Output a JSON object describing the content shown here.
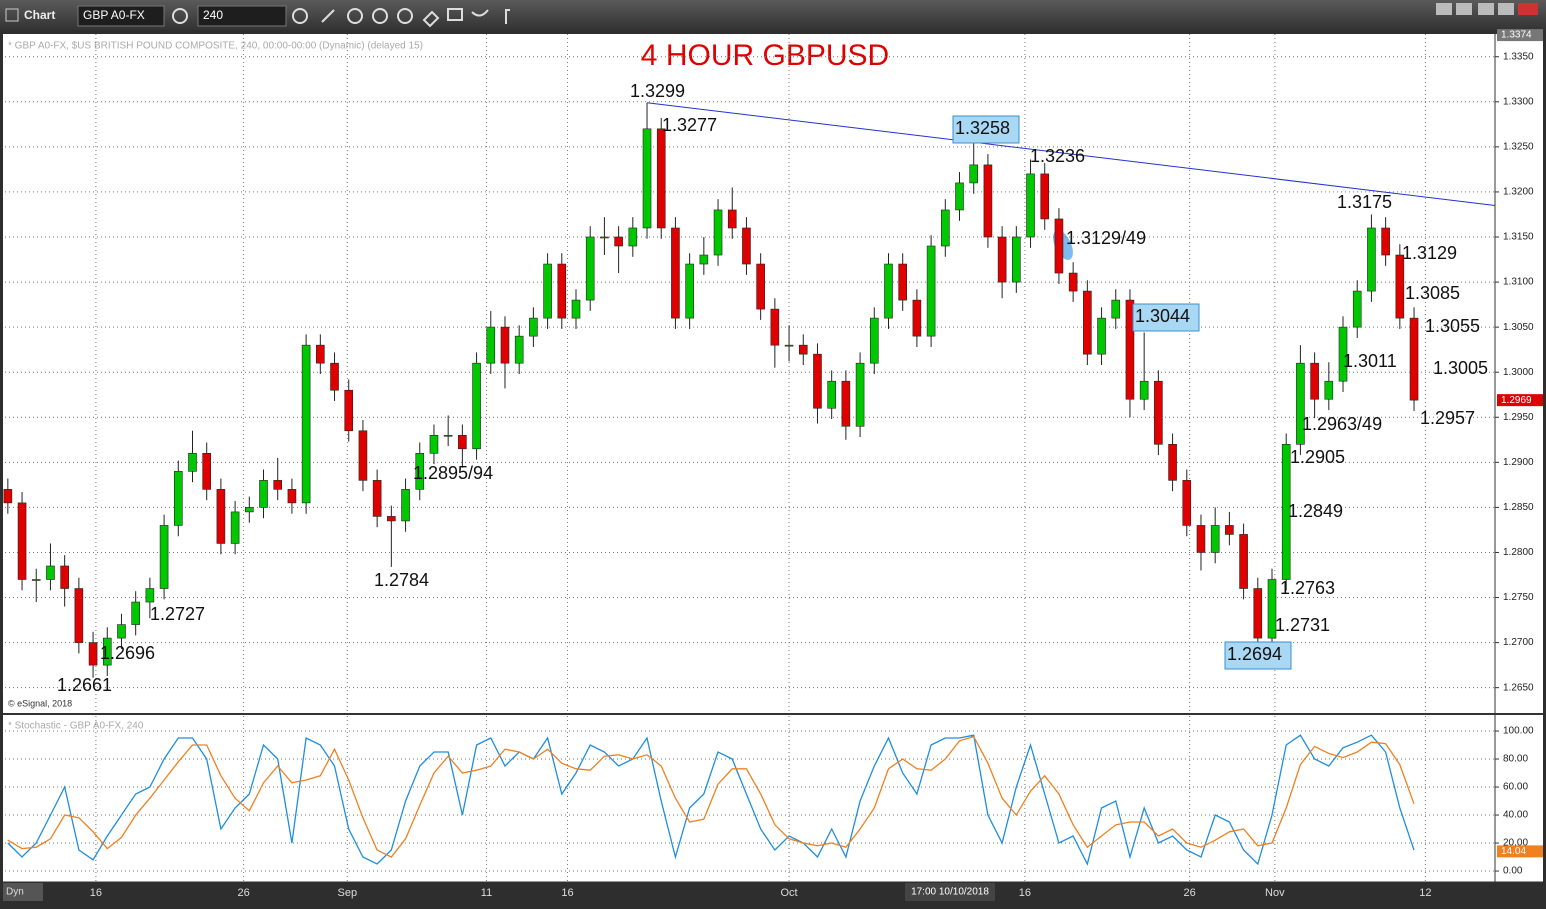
{
  "ui": {
    "window_title": "Chart",
    "symbol": "GBP A0-FX",
    "interval": "240",
    "mode": "Dyn",
    "price_header": "* GBP A0-FX, $US BRITISH POUND COMPOSITE, 240, 00:00-00:00 (Dynamic) (delayed 15)",
    "copyright": "© eSignal, 2018",
    "stoch_header": "* Stochastic - GBP A0-FX, 240",
    "cursor_time": "17:00 10/10/2018"
  },
  "chart_data": [
    {
      "type": "candlestick",
      "title": "4 HOUR GBPUSD",
      "up_color": "#00c800",
      "down_color": "#e00000",
      "open": [
        1.287,
        1.2855,
        1.277,
        1.277,
        1.2785,
        1.276,
        1.27,
        1.2675,
        1.2705,
        1.272,
        1.2745,
        1.276,
        1.283,
        1.289,
        1.291,
        1.287,
        1.281,
        1.2845,
        1.285,
        1.288,
        1.287,
        1.2855,
        1.303,
        1.301,
        1.298,
        1.2935,
        1.288,
        1.284,
        1.2835,
        1.287,
        1.291,
        1.293,
        1.293,
        1.2915,
        1.301,
        1.305,
        1.301,
        1.304,
        1.306,
        1.312,
        1.306,
        1.308,
        1.315,
        1.315,
        1.314,
        1.316,
        1.327,
        1.316,
        1.306,
        1.312,
        1.313,
        1.318,
        1.316,
        1.312,
        1.307,
        1.303,
        1.303,
        1.302,
        1.296,
        1.299,
        1.294,
        1.301,
        1.306,
        1.312,
        1.308,
        1.304,
        1.314,
        1.318,
        1.321,
        1.323,
        1.315,
        1.31,
        1.315,
        1.322,
        1.317,
        1.311,
        1.309,
        1.302,
        1.306,
        1.308,
        1.297,
        1.299,
        1.292,
        1.288,
        1.283,
        1.28,
        1.283,
        1.282,
        1.276,
        1.2705,
        1.277,
        1.292,
        1.301,
        1.297,
        1.299,
        1.305,
        1.309,
        1.316,
        1.313,
        1.306
      ],
      "high": [
        1.2882,
        1.2867,
        1.2782,
        1.281,
        1.2797,
        1.2772,
        1.2712,
        1.2717,
        1.2732,
        1.2757,
        1.2772,
        1.2842,
        1.2902,
        1.2935,
        1.2922,
        1.2882,
        1.2857,
        1.2862,
        1.2892,
        1.2905,
        1.2882,
        1.3042,
        1.3042,
        1.3022,
        1.2992,
        1.2947,
        1.2892,
        1.2852,
        1.2882,
        1.2922,
        1.2942,
        1.2952,
        1.2942,
        1.3022,
        1.3068,
        1.3062,
        1.3052,
        1.3072,
        1.3132,
        1.3132,
        1.3092,
        1.3162,
        1.3172,
        1.3162,
        1.3172,
        1.3299,
        1.3282,
        1.3172,
        1.3132,
        1.315,
        1.3192,
        1.3205,
        1.3172,
        1.3132,
        1.3082,
        1.3052,
        1.3042,
        1.3032,
        1.3002,
        1.3002,
        1.3022,
        1.3072,
        1.3132,
        1.3132,
        1.3092,
        1.3152,
        1.3192,
        1.3222,
        1.3258,
        1.3242,
        1.3162,
        1.3162,
        1.3236,
        1.3232,
        1.3182,
        1.3122,
        1.3102,
        1.3072,
        1.3092,
        1.3092,
        1.3044,
        1.3002,
        1.2932,
        1.2892,
        1.2842,
        1.285,
        1.2845,
        1.2832,
        1.2772,
        1.2782,
        1.2932,
        1.303,
        1.3022,
        1.3011,
        1.3062,
        1.3102,
        1.3175,
        1.3172,
        1.3142,
        1.3072
      ],
      "low": [
        1.2843,
        1.2758,
        1.2745,
        1.2758,
        1.274,
        1.2688,
        1.2661,
        1.2663,
        1.2693,
        1.2708,
        1.2727,
        1.2748,
        1.2818,
        1.2878,
        1.2858,
        1.2798,
        1.2798,
        1.2833,
        1.2838,
        1.2858,
        1.2843,
        1.2843,
        1.2998,
        1.2968,
        1.2923,
        1.2868,
        1.2828,
        1.2784,
        1.2823,
        1.2858,
        1.2898,
        1.2918,
        1.2894,
        1.2903,
        1.2998,
        1.2982,
        1.2998,
        1.3028,
        1.3048,
        1.3048,
        1.3048,
        1.3068,
        1.313,
        1.311,
        1.3128,
        1.3148,
        1.3148,
        1.3048,
        1.3048,
        1.3108,
        1.3118,
        1.3148,
        1.3108,
        1.3058,
        1.3005,
        1.3012,
        1.3008,
        1.2943,
        1.2948,
        1.2925,
        1.2928,
        1.2998,
        1.3048,
        1.3068,
        1.3028,
        1.3028,
        1.3128,
        1.3168,
        1.3198,
        1.3138,
        1.3082,
        1.3088,
        1.3138,
        1.3158,
        1.3098,
        1.3078,
        1.3008,
        1.3008,
        1.3048,
        1.295,
        1.2958,
        1.2908,
        1.2868,
        1.2818,
        1.278,
        1.2788,
        1.2808,
        1.2748,
        1.2694,
        1.2693,
        1.2758,
        1.2908,
        1.2949,
        1.2958,
        1.2978,
        1.3038,
        1.3078,
        1.3118,
        1.3048,
        1.2957
      ],
      "close": [
        1.2855,
        1.277,
        1.277,
        1.2785,
        1.276,
        1.27,
        1.2675,
        1.2705,
        1.272,
        1.2745,
        1.276,
        1.283,
        1.289,
        1.291,
        1.287,
        1.281,
        1.2845,
        1.285,
        1.288,
        1.287,
        1.2855,
        1.303,
        1.301,
        1.298,
        1.2935,
        1.288,
        1.284,
        1.2835,
        1.287,
        1.291,
        1.293,
        1.293,
        1.2915,
        1.301,
        1.305,
        1.301,
        1.304,
        1.306,
        1.312,
        1.306,
        1.308,
        1.315,
        1.315,
        1.314,
        1.316,
        1.327,
        1.316,
        1.306,
        1.312,
        1.313,
        1.318,
        1.316,
        1.312,
        1.307,
        1.303,
        1.303,
        1.302,
        1.296,
        1.299,
        1.294,
        1.301,
        1.306,
        1.312,
        1.308,
        1.304,
        1.314,
        1.318,
        1.321,
        1.323,
        1.315,
        1.31,
        1.315,
        1.322,
        1.317,
        1.311,
        1.309,
        1.302,
        1.306,
        1.308,
        1.297,
        1.299,
        1.292,
        1.288,
        1.283,
        1.28,
        1.283,
        1.282,
        1.276,
        1.2705,
        1.277,
        1.292,
        1.301,
        1.297,
        1.299,
        1.305,
        1.309,
        1.316,
        1.313,
        1.306,
        1.2969
      ],
      "xlim": [
        -0.2,
        104.7
      ],
      "ylim": [
        1.2623,
        1.3373
      ],
      "yticks": [
        {
          "value": 1.265,
          "label": "1.2650"
        },
        {
          "value": 1.27,
          "label": "1.2700"
        },
        {
          "value": 1.275,
          "label": "1.2750"
        },
        {
          "value": 1.28,
          "label": "1.2800"
        },
        {
          "value": 1.285,
          "label": "1.2850"
        },
        {
          "value": 1.29,
          "label": "1.2900"
        },
        {
          "value": 1.295,
          "label": "1.2950"
        },
        {
          "value": 1.3,
          "label": "1.3000"
        },
        {
          "value": 1.305,
          "label": "1.3050"
        },
        {
          "value": 1.31,
          "label": "1.3100"
        },
        {
          "value": 1.315,
          "label": "1.3150"
        },
        {
          "value": 1.32,
          "label": "1.3200"
        },
        {
          "value": 1.325,
          "label": "1.3250"
        },
        {
          "value": 1.33,
          "label": "1.3300"
        },
        {
          "value": 1.335,
          "label": "1.3350"
        }
      ],
      "xticks": [
        {
          "value": 6.2,
          "label": "16"
        },
        {
          "value": 16.6,
          "label": "26"
        },
        {
          "value": 23.9,
          "label": "Sep"
        },
        {
          "value": 33.7,
          "label": "11"
        },
        {
          "value": 39.4,
          "label": "16"
        },
        {
          "value": 55,
          "label": "Oct"
        },
        {
          "value": 71.6,
          "label": "16"
        },
        {
          "value": 83.2,
          "label": "26"
        },
        {
          "value": 89.2,
          "label": "Nov"
        },
        {
          "value": 99.8,
          "label": "12"
        }
      ],
      "grid": true,
      "trendline": {
        "color": "#2233cc",
        "x": [
          45,
          104.7
        ],
        "y": [
          1.3299,
          1.3185
        ]
      },
      "axis_markers": [
        {
          "value": 1.3374,
          "label": "1.3374",
          "color": "#777777"
        },
        {
          "value": 1.2969,
          "label": "1.2969",
          "color": "#e00000"
        }
      ],
      "annotations": [
        "1.3299",
        "1.3277",
        "1.3258",
        "1.3236",
        "1.3175",
        "1.3129/49",
        "1.3129",
        "1.3085",
        "1.3044",
        "1.3055",
        "1.3011",
        "1.3005",
        "1.2957",
        "1.2963/49",
        "1.2905",
        "1.2895/94",
        "1.2849",
        "1.2763",
        "1.2784",
        "1.2727",
        "1.2731",
        "1.2696",
        "1.2694",
        "1.2661"
      ]
    },
    {
      "type": "line",
      "ylim": [
        -6.4,
        109.3
      ],
      "yticks": [
        {
          "value": 0,
          "label": "0.00"
        },
        {
          "value": 20,
          "label": "20.00"
        },
        {
          "value": 40,
          "label": "40.00"
        },
        {
          "value": 60,
          "label": "60.00"
        },
        {
          "value": 80,
          "label": "80.00"
        },
        {
          "value": 100,
          "label": "100.00"
        }
      ],
      "series": [
        {
          "color": "#1e8ee0",
          "values": [
            20,
            10,
            20,
            40,
            60,
            15,
            8,
            25,
            40,
            55,
            60,
            80,
            95,
            95,
            80,
            30,
            45,
            55,
            90,
            80,
            20,
            95,
            90,
            75,
            30,
            10,
            5,
            15,
            50,
            75,
            85,
            85,
            40,
            90,
            95,
            75,
            85,
            80,
            95,
            55,
            70,
            90,
            85,
            75,
            80,
            95,
            50,
            10,
            45,
            55,
            85,
            80,
            55,
            30,
            15,
            25,
            20,
            10,
            30,
            10,
            50,
            75,
            95,
            70,
            55,
            90,
            95,
            95,
            97,
            40,
            20,
            60,
            90,
            55,
            20,
            25,
            5,
            45,
            50,
            10,
            45,
            20,
            25,
            15,
            10,
            40,
            35,
            15,
            5,
            40,
            90,
            97,
            80,
            75,
            88,
            92,
            97,
            85,
            45,
            15
          ]
        },
        {
          "color": "#f08020",
          "values": [
            22,
            16,
            17,
            23,
            40,
            38,
            28,
            16,
            24,
            40,
            52,
            65,
            78,
            90,
            90,
            68,
            52,
            43,
            63,
            75,
            63,
            65,
            68,
            87,
            65,
            38,
            15,
            10,
            23,
            47,
            70,
            82,
            70,
            72,
            75,
            87,
            85,
            80,
            87,
            77,
            73,
            72,
            82,
            83,
            80,
            83,
            75,
            52,
            35,
            37,
            62,
            73,
            73,
            55,
            33,
            23,
            20,
            18,
            20,
            17,
            30,
            45,
            73,
            80,
            73,
            72,
            80,
            93,
            96,
            77,
            52,
            40,
            57,
            68,
            55,
            33,
            17,
            25,
            33,
            35,
            35,
            25,
            30,
            20,
            17,
            22,
            28,
            30,
            18,
            20,
            45,
            76,
            89,
            84,
            81,
            85,
            92,
            91,
            76,
            48
          ]
        }
      ],
      "axis_markers": [
        {
          "value": 14.04,
          "label": "14.04",
          "color": "#f08020"
        }
      ]
    }
  ]
}
